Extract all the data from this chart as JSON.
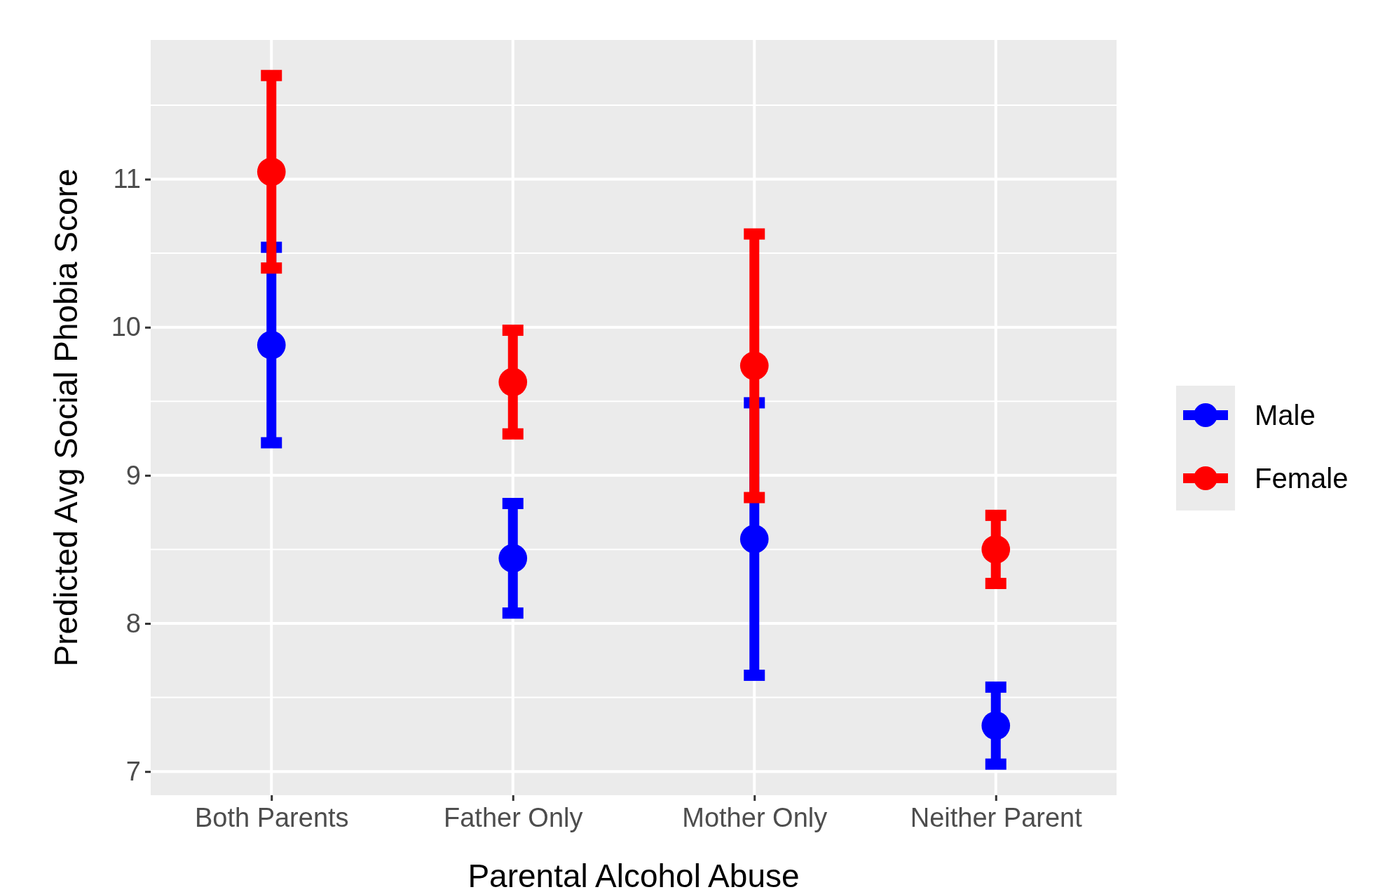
{
  "chart_data": {
    "type": "scatter",
    "xlabel": "Parental Alcohol Abuse",
    "ylabel": "Predicted Avg Social Phobia Score",
    "categories": [
      "Both Parents",
      "Father Only",
      "Mother Only",
      "Neither Parent"
    ],
    "series": [
      {
        "name": "Male",
        "color": "#0000ff",
        "values": [
          9.88,
          8.44,
          8.57,
          7.31
        ],
        "errors": [
          0.66,
          0.37,
          0.92,
          0.26
        ]
      },
      {
        "name": "Female",
        "color": "#ff0000",
        "values": [
          11.05,
          9.63,
          9.74,
          8.5
        ],
        "errors": [
          0.65,
          0.35,
          0.89,
          0.23
        ]
      }
    ],
    "ylim": [
      6.84,
      11.94
    ],
    "yticks": [
      7,
      8,
      9,
      10,
      11
    ],
    "grid": true,
    "legend": "right",
    "marker": "circle"
  }
}
